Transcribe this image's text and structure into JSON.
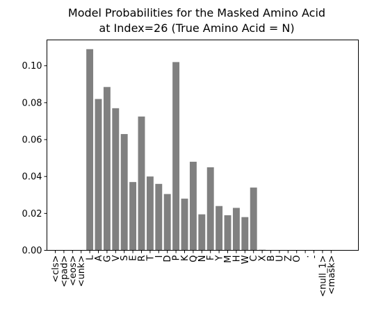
{
  "chart_data": {
    "type": "bar",
    "title_lines": [
      "Model Probabilities for the Masked Amino Acid",
      "at Index=26 (True Amino Acid = N)"
    ],
    "xlabel": "",
    "ylabel": "",
    "ylim": [
      0,
      0.114
    ],
    "yticks": [
      0.0,
      0.02,
      0.04,
      0.06,
      0.08,
      0.1
    ],
    "ytick_labels": [
      "0.00",
      "0.02",
      "0.04",
      "0.06",
      "0.08",
      "0.10"
    ],
    "bar_color": "#808080",
    "grid": false,
    "categories": [
      "<cls>",
      "<pad>",
      "<eos>",
      "<unk>",
      "L",
      "A",
      "G",
      "V",
      "S",
      "E",
      "R",
      "T",
      "I",
      "D",
      "P",
      "K",
      "Q",
      "N",
      "F",
      "Y",
      "M",
      "H",
      "W",
      "C",
      "X",
      "B",
      "U",
      "Z",
      "O",
      ".",
      "-",
      "<null_1>",
      "<mask>"
    ],
    "values": [
      0,
      0,
      0,
      0,
      0.109,
      0.082,
      0.0885,
      0.077,
      0.063,
      0.037,
      0.0725,
      0.04,
      0.036,
      0.0305,
      0.102,
      0.028,
      0.048,
      0.0195,
      0.045,
      0.024,
      0.019,
      0.023,
      0.018,
      0.034,
      0.0003,
      0,
      0,
      0,
      0,
      0,
      0,
      0,
      0
    ]
  }
}
